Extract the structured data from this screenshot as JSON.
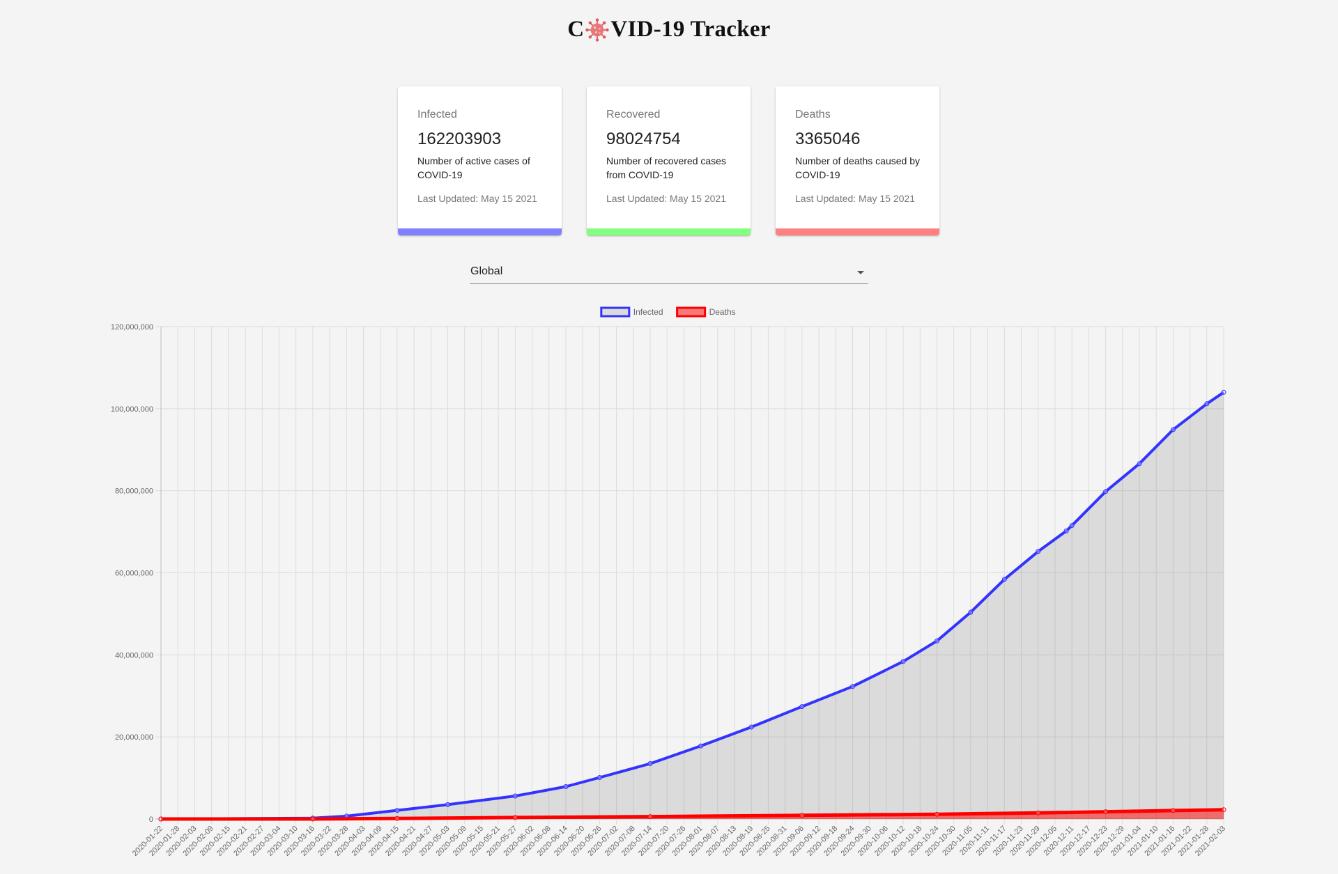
{
  "header": {
    "title_before": "C",
    "title_after": "VID-19 Tracker",
    "logo_icon": "virus-icon"
  },
  "cards": [
    {
      "label": "Infected",
      "value": "162203903",
      "description": "Number of active cases of COVID-19",
      "updated": "Last Updated: May 15 2021",
      "color": "#8080ff"
    },
    {
      "label": "Recovered",
      "value": "98024754",
      "description": "Number of recovered cases from COVID-19",
      "updated": "Last Updated: May 15 2021",
      "color": "#80ff80"
    },
    {
      "label": "Deaths",
      "value": "3365046",
      "description": "Number of deaths caused by COVID-19",
      "updated": "Last Updated: May 15 2021",
      "color": "#ff8080"
    }
  ],
  "country_select": {
    "value": "Global",
    "icon": "chevron-down-icon"
  },
  "chart_data": {
    "type": "line",
    "title": "",
    "xlabel": "",
    "ylabel": "",
    "ylim": [
      0,
      120000000
    ],
    "ytick_labels": [
      "0",
      "20,000,000",
      "40,000,000",
      "60,000,000",
      "80,000,000",
      "100,000,000",
      "120,000,000"
    ],
    "x_start": "2020-01-22",
    "x_end": "2021-02-03",
    "x_tick_labels": [
      "2020-01-22",
      "2020-01-28",
      "2020-02-03",
      "2020-02-09",
      "2020-02-15",
      "2020-02-21",
      "2020-02-27",
      "2020-03-04",
      "2020-03-10",
      "2020-03-16",
      "2020-03-22",
      "2020-03-28",
      "2020-04-03",
      "2020-04-09",
      "2020-04-15",
      "2020-04-21",
      "2020-04-27",
      "2020-05-03",
      "2020-05-09",
      "2020-05-15",
      "2020-05-21",
      "2020-05-27",
      "2020-06-02",
      "2020-06-08",
      "2020-06-14",
      "2020-06-20",
      "2020-06-26",
      "2020-07-02",
      "2020-07-08",
      "2020-07-14",
      "2020-07-20",
      "2020-07-26",
      "2020-08-01",
      "2020-08-07",
      "2020-08-13",
      "2020-08-19",
      "2020-08-25",
      "2020-08-31",
      "2020-09-06",
      "2020-09-12",
      "2020-09-18",
      "2020-09-24",
      "2020-09-30",
      "2020-10-06",
      "2020-10-12",
      "2020-10-18",
      "2020-10-24",
      "2020-10-30",
      "2020-11-05",
      "2020-11-11",
      "2020-11-17",
      "2020-11-23",
      "2020-11-29",
      "2020-12-05",
      "2020-12-11",
      "2020-12-17",
      "2020-12-23",
      "2020-12-29",
      "2021-01-04",
      "2021-01-10",
      "2021-01-16",
      "2021-01-22",
      "2021-01-28",
      "2021-02-03"
    ],
    "grid": true,
    "legend_position": "top",
    "series": [
      {
        "name": "Infected",
        "color": "#3333ff",
        "fill": "rgba(0,0,0,0.1)",
        "x": [
          "2020-01-22",
          "2020-03-16",
          "2020-03-28",
          "2020-04-15",
          "2020-05-03",
          "2020-05-27",
          "2020-06-14",
          "2020-06-26",
          "2020-07-14",
          "2020-08-01",
          "2020-08-19",
          "2020-09-06",
          "2020-09-24",
          "2020-10-12",
          "2020-10-24",
          "2020-11-05",
          "2020-11-17",
          "2020-11-29",
          "2020-12-09",
          "2020-12-11",
          "2020-12-23",
          "2021-01-04",
          "2021-01-16",
          "2021-01-28",
          "2021-02-03"
        ],
        "values": [
          0,
          200000,
          700000,
          2100000,
          3500000,
          5600000,
          7900000,
          10100000,
          13500000,
          17800000,
          22400000,
          27400000,
          32300000,
          38400000,
          43400000,
          50400000,
          58400000,
          65200000,
          70200000,
          71500000,
          79800000,
          86600000,
          94900000,
          101200000,
          104000000
        ]
      },
      {
        "name": "Deaths",
        "color": "#ff0000",
        "fill": "rgba(255,0,0,0.5)",
        "x": [
          "2020-01-22",
          "2020-03-16",
          "2020-04-15",
          "2020-05-27",
          "2020-07-14",
          "2020-09-06",
          "2020-10-24",
          "2020-11-29",
          "2020-12-23",
          "2021-01-16",
          "2021-02-03"
        ],
        "values": [
          0,
          7000,
          140000,
          360000,
          580000,
          880000,
          1160000,
          1470000,
          1760000,
          2050000,
          2250000
        ]
      }
    ]
  }
}
